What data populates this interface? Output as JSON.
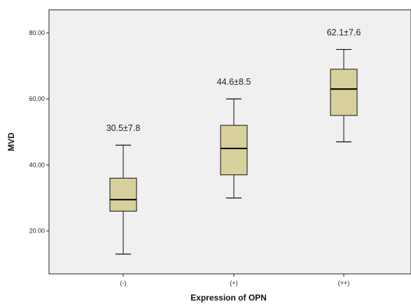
{
  "chart_data": {
    "type": "box",
    "xlabel": "Expression of OPN",
    "ylabel": "MVD",
    "ylim": [
      7,
      87
    ],
    "y_ticks": [
      "20.00",
      "40.00",
      "60.00",
      "80.00"
    ],
    "y_tick_values": [
      20,
      40,
      60,
      80
    ],
    "categories": [
      "(-)",
      "(+)",
      "(++)"
    ],
    "boxes": [
      {
        "category": "(-)",
        "min": 13,
        "q1": 26,
        "median": 29.5,
        "q3": 36,
        "max": 46,
        "label": "30.5±7.8"
      },
      {
        "category": "(+)",
        "min": 30,
        "q1": 37,
        "median": 45,
        "q3": 52,
        "max": 60,
        "label": "44.6±8.5"
      },
      {
        "category": "(++)",
        "min": 47,
        "q1": 55,
        "median": 63,
        "q3": 69,
        "max": 75,
        "label": "62.1±7.6"
      }
    ],
    "grid": false,
    "colors": {
      "box_fill": "#d8d09c",
      "plot_bg": "#f0f0f0",
      "line": "#111111"
    }
  }
}
